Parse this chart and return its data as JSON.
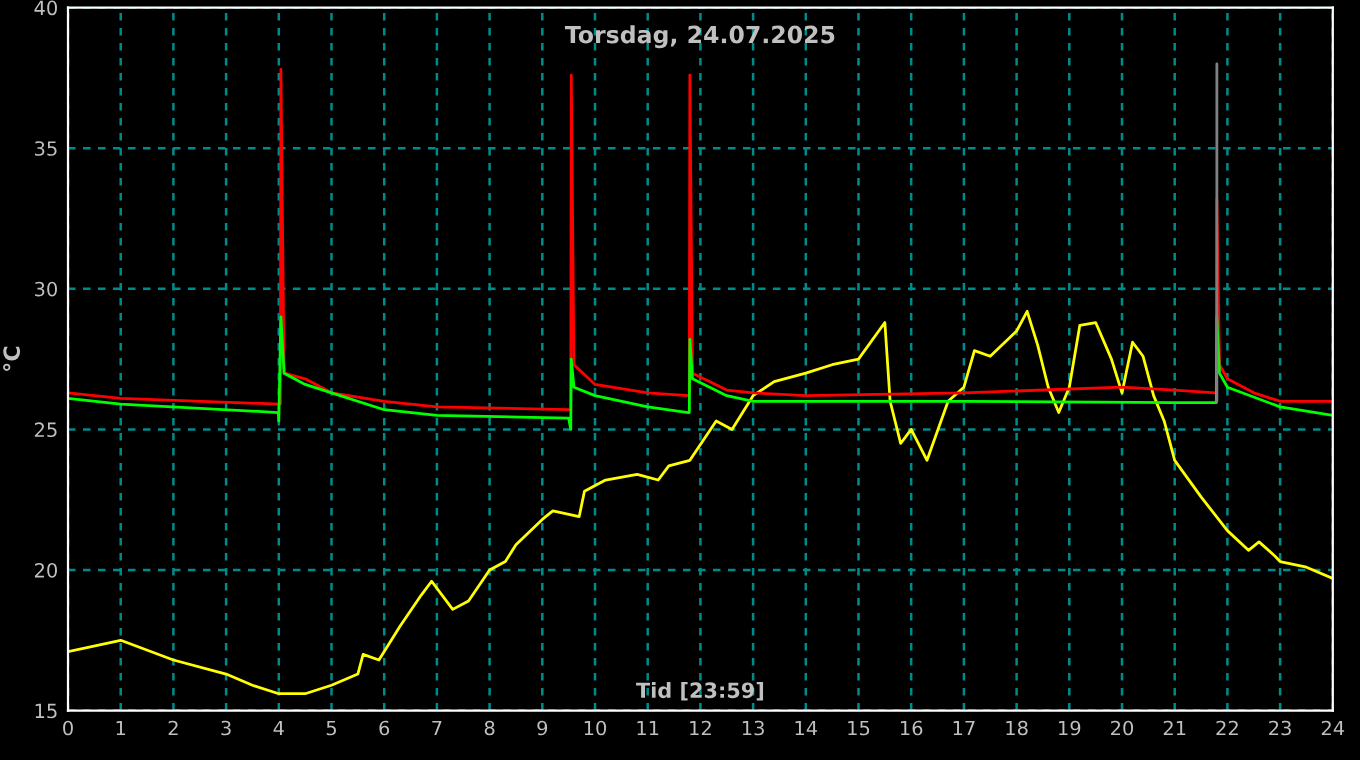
{
  "chart_data": {
    "type": "line",
    "title": "Torsdag, 24.07.2025",
    "xlabel": "Tid [23:59]",
    "ylabel": "°C",
    "xlim": [
      0,
      24
    ],
    "xticks": [
      0,
      1,
      2,
      3,
      4,
      5,
      6,
      7,
      8,
      9,
      10,
      11,
      12,
      13,
      14,
      15,
      16,
      17,
      18,
      19,
      20,
      21,
      22,
      23,
      24
    ],
    "ylim": [
      15,
      40
    ],
    "yticks": [
      15,
      20,
      25,
      30,
      35,
      40
    ],
    "grid": true,
    "legend": false,
    "series": [
      {
        "color": "#ffff00",
        "x": [
          0,
          1,
          2,
          3,
          3.5,
          4,
          4.5,
          5,
          5.5,
          5.6,
          5.9,
          6.3,
          6.7,
          6.9,
          7.3,
          7.6,
          8,
          8.3,
          8.5,
          9,
          9.2,
          9.7,
          9.8,
          10.2,
          10.8,
          11.2,
          11.4,
          11.8,
          12.3,
          12.6,
          13,
          13.4,
          14,
          14.5,
          15,
          15.5,
          15.6,
          15.8,
          16,
          16.3,
          16.7,
          17,
          17.2,
          17.5,
          18,
          18.2,
          18.4,
          18.6,
          18.8,
          19,
          19.2,
          19.5,
          19.8,
          20,
          20.2,
          20.4,
          20.6,
          20.8,
          21,
          21.5,
          22,
          22.4,
          22.6,
          22.9,
          23,
          23.5,
          24
        ],
        "values": [
          17.1,
          17.5,
          16.8,
          16.3,
          15.9,
          15.6,
          15.6,
          15.9,
          16.3,
          17.0,
          16.8,
          18.0,
          19.1,
          19.6,
          18.6,
          18.9,
          20.0,
          20.3,
          20.9,
          21.8,
          22.1,
          21.9,
          22.8,
          23.2,
          23.4,
          23.2,
          23.7,
          23.9,
          25.3,
          25.0,
          26.2,
          26.7,
          27.0,
          27.3,
          27.5,
          28.8,
          26.0,
          24.5,
          25.0,
          23.9,
          26.0,
          26.5,
          27.8,
          27.6,
          28.5,
          29.2,
          28.0,
          26.5,
          25.6,
          26.5,
          28.7,
          28.8,
          27.5,
          26.3,
          28.1,
          27.6,
          26.2,
          25.3,
          23.9,
          22.6,
          21.4,
          20.7,
          21.0,
          20.5,
          20.3,
          20.1,
          19.7
        ]
      },
      {
        "color": "#ff0000",
        "x": [
          0,
          1,
          4,
          4.03,
          4.04,
          4.1,
          4.5,
          5,
          6,
          7,
          9.5,
          9.54,
          9.55,
          9.6,
          10,
          11,
          11.77,
          11.79,
          11.8,
          11.85,
          12.5,
          13,
          14,
          17,
          20,
          21,
          21.77,
          21.79,
          21.8,
          21.85,
          22,
          22.5,
          23,
          24
        ],
        "values": [
          26.3,
          26.1,
          25.9,
          25.9,
          37.8,
          27.0,
          26.8,
          26.3,
          26.0,
          25.8,
          25.7,
          25.7,
          37.6,
          27.3,
          26.6,
          26.3,
          26.2,
          26.2,
          37.6,
          27.0,
          26.4,
          26.3,
          26.2,
          26.3,
          26.5,
          26.4,
          26.3,
          26.3,
          33.2,
          27.3,
          26.8,
          26.3,
          26.0,
          26.0
        ]
      },
      {
        "color": "#00ff00",
        "x": [
          0,
          1,
          3.99,
          4.0,
          4.04,
          4.1,
          4.5,
          5,
          6,
          7,
          9.5,
          9.54,
          9.55,
          9.6,
          10,
          11,
          11.77,
          11.79,
          11.8,
          11.85,
          12.5,
          13,
          17,
          21,
          21.77,
          21.79,
          21.8,
          21.85,
          22,
          23,
          24
        ],
        "values": [
          26.1,
          25.9,
          25.6,
          25.3,
          29.0,
          27.0,
          26.6,
          26.3,
          25.7,
          25.5,
          25.4,
          25.0,
          27.5,
          26.5,
          26.2,
          25.8,
          25.6,
          25.6,
          28.2,
          26.8,
          26.2,
          26.0,
          26.0,
          25.95,
          25.95,
          25.95,
          29.0,
          27.0,
          26.5,
          25.8,
          25.5
        ]
      },
      {
        "color": "#808080",
        "x": [
          21.8,
          21.8
        ],
        "values": [
          26.0,
          38.0
        ]
      }
    ]
  }
}
